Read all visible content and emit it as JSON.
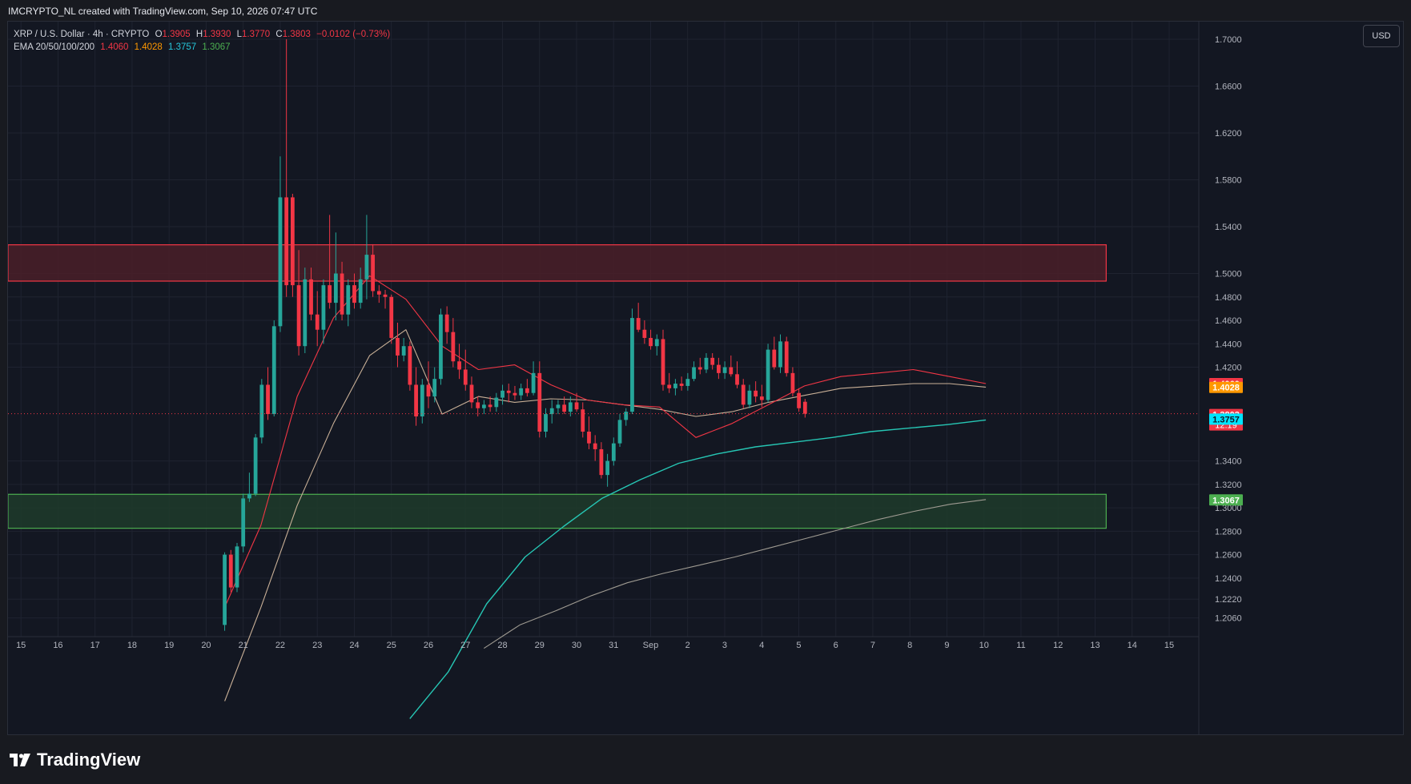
{
  "header": {
    "credit": "IMCRYPTO_NL created with TradingView.com, Sep 10, 2026 07:47 UTC"
  },
  "legend": {
    "symbol": "XRP / U.S. Dollar · 4h · CRYPTO",
    "o_label": "O",
    "o_value": "1.3905",
    "h_label": "H",
    "h_value": "1.3930",
    "l_label": "L",
    "l_value": "1.3770",
    "c_label": "C",
    "c_value": "1.3803",
    "change": "−0.0102 (−0.73%)",
    "ema_label": "EMA 20/50/100/200",
    "ema20": "1.4060",
    "ema50": "1.4028",
    "ema100": "1.3757",
    "ema200": "1.3067"
  },
  "toolbar": {
    "currency": "USD"
  },
  "brand": {
    "name": "TradingView"
  },
  "colors": {
    "bull": "#26a69a",
    "bear": "#f23645",
    "ema20": "#f23645",
    "ema50": "#c9b097",
    "ema100": "#26c6b4",
    "ema200": "#9e9a91",
    "resistance_fill": "#4a1f28",
    "resistance_border": "#f23645",
    "support_fill": "#1e3b2a",
    "support_border": "#4caf50"
  },
  "chart_data": {
    "type": "candlestick",
    "timeframe": "4h",
    "symbol": "XRP / U.S. Dollar",
    "currency": "USD",
    "ylim": [
      1.19,
      1.715
    ],
    "xlim": [
      -0.35,
      31.8
    ],
    "y_ticks": [
      "1.2060",
      "1.2220",
      "1.2400",
      "1.2600",
      "1.2800",
      "1.3000",
      "1.3200",
      "1.3400",
      "1.4200",
      "1.4400",
      "1.4600",
      "1.4800",
      "1.5000",
      "1.5400",
      "1.5800",
      "1.6200",
      "1.6600",
      "1.7000"
    ],
    "x_ticks": [
      {
        "pos": 0,
        "label": "15"
      },
      {
        "pos": 1,
        "label": "16"
      },
      {
        "pos": 2,
        "label": "17"
      },
      {
        "pos": 3,
        "label": "18"
      },
      {
        "pos": 4,
        "label": "19"
      },
      {
        "pos": 5,
        "label": "20"
      },
      {
        "pos": 6,
        "label": "21"
      },
      {
        "pos": 7,
        "label": "22"
      },
      {
        "pos": 8,
        "label": "23"
      },
      {
        "pos": 9,
        "label": "24"
      },
      {
        "pos": 10,
        "label": "25"
      },
      {
        "pos": 11,
        "label": "26"
      },
      {
        "pos": 12,
        "label": "27"
      },
      {
        "pos": 13,
        "label": "28"
      },
      {
        "pos": 14,
        "label": "29"
      },
      {
        "pos": 15,
        "label": "30"
      },
      {
        "pos": 16,
        "label": "31"
      },
      {
        "pos": 17,
        "label": "Sep"
      },
      {
        "pos": 18,
        "label": "2"
      },
      {
        "pos": 19,
        "label": "3"
      },
      {
        "pos": 20,
        "label": "4"
      },
      {
        "pos": 21,
        "label": "5"
      },
      {
        "pos": 22,
        "label": "6"
      },
      {
        "pos": 23,
        "label": "7"
      },
      {
        "pos": 24,
        "label": "8"
      },
      {
        "pos": 25,
        "label": "9"
      },
      {
        "pos": 26,
        "label": "10"
      },
      {
        "pos": 27,
        "label": "11"
      },
      {
        "pos": 28,
        "label": "12"
      },
      {
        "pos": 29,
        "label": "13"
      },
      {
        "pos": 30,
        "label": "14"
      },
      {
        "pos": 31,
        "label": "15"
      }
    ],
    "candles": {
      "start": 5.5,
      "step": 0.1667,
      "ohlc": [
        [
          1.2,
          1.262,
          1.195,
          1.26
        ],
        [
          1.26,
          1.264,
          1.228,
          1.232
        ],
        [
          1.232,
          1.27,
          1.228,
          1.267
        ],
        [
          1.267,
          1.312,
          1.262,
          1.308
        ],
        [
          1.308,
          1.33,
          1.305,
          1.312
        ],
        [
          1.312,
          1.363,
          1.31,
          1.36
        ],
        [
          1.36,
          1.41,
          1.355,
          1.405
        ],
        [
          1.405,
          1.42,
          1.375,
          1.38
        ],
        [
          1.38,
          1.46,
          1.378,
          1.455
        ],
        [
          1.455,
          1.6,
          1.45,
          1.565
        ],
        [
          1.565,
          1.7,
          1.48,
          1.49
        ],
        [
          1.565,
          1.568,
          1.48,
          1.49
        ],
        [
          1.49,
          1.52,
          1.43,
          1.438
        ],
        [
          1.438,
          1.505,
          1.432,
          1.495
        ],
        [
          1.495,
          1.505,
          1.46,
          1.465
        ],
        [
          1.465,
          1.485,
          1.438,
          1.452
        ],
        [
          1.452,
          1.495,
          1.44,
          1.49
        ],
        [
          1.49,
          1.55,
          1.47,
          1.475
        ],
        [
          1.475,
          1.535,
          1.46,
          1.5
        ],
        [
          1.5,
          1.51,
          1.46,
          1.465
        ],
        [
          1.465,
          1.495,
          1.455,
          1.49
        ],
        [
          1.49,
          1.5,
          1.47,
          1.475
        ],
        [
          1.475,
          1.505,
          1.47,
          1.495
        ],
        [
          1.495,
          1.55,
          1.478,
          1.516
        ],
        [
          1.516,
          1.525,
          1.48,
          1.485
        ],
        [
          1.485,
          1.49,
          1.475,
          1.482
        ],
        [
          1.482,
          1.486,
          1.47,
          1.48
        ],
        [
          1.48,
          1.482,
          1.44,
          1.445
        ],
        [
          1.445,
          1.458,
          1.42,
          1.43
        ],
        [
          1.43,
          1.445,
          1.425,
          1.438
        ],
        [
          1.438,
          1.442,
          1.4,
          1.405
        ],
        [
          1.405,
          1.42,
          1.37,
          1.378
        ],
        [
          1.378,
          1.41,
          1.372,
          1.405
        ],
        [
          1.405,
          1.425,
          1.385,
          1.395
        ],
        [
          1.395,
          1.42,
          1.39,
          1.41
        ],
        [
          1.41,
          1.47,
          1.405,
          1.465
        ],
        [
          1.465,
          1.472,
          1.44,
          1.45
        ],
        [
          1.45,
          1.462,
          1.42,
          1.425
        ],
        [
          1.425,
          1.44,
          1.41,
          1.418
        ],
        [
          1.418,
          1.435,
          1.4,
          1.405
        ],
        [
          1.405,
          1.412,
          1.385,
          1.39
        ],
        [
          1.39,
          1.395,
          1.378,
          1.385
        ],
        [
          1.385,
          1.392,
          1.38,
          1.388
        ],
        [
          1.388,
          1.395,
          1.382,
          1.386
        ],
        [
          1.386,
          1.398,
          1.382,
          1.394
        ],
        [
          1.394,
          1.405,
          1.388,
          1.4
        ],
        [
          1.4,
          1.406,
          1.39,
          1.398
        ],
        [
          1.398,
          1.404,
          1.392,
          1.396
        ],
        [
          1.396,
          1.406,
          1.392,
          1.402
        ],
        [
          1.402,
          1.41,
          1.395,
          1.398
        ],
        [
          1.398,
          1.425,
          1.396,
          1.415
        ],
        [
          1.415,
          1.425,
          1.36,
          1.365
        ],
        [
          1.365,
          1.385,
          1.36,
          1.38
        ],
        [
          1.38,
          1.392,
          1.372,
          1.385
        ],
        [
          1.385,
          1.392,
          1.38,
          1.388
        ],
        [
          1.388,
          1.395,
          1.38,
          1.382
        ],
        [
          1.382,
          1.395,
          1.378,
          1.39
        ],
        [
          1.39,
          1.398,
          1.382,
          1.384
        ],
        [
          1.384,
          1.39,
          1.36,
          1.365
        ],
        [
          1.365,
          1.378,
          1.35,
          1.355
        ],
        [
          1.355,
          1.362,
          1.34,
          1.35
        ],
        [
          1.35,
          1.356,
          1.325,
          1.328
        ],
        [
          1.328,
          1.346,
          1.318,
          1.34
        ],
        [
          1.34,
          1.36,
          1.336,
          1.355
        ],
        [
          1.355,
          1.38,
          1.352,
          1.375
        ],
        [
          1.375,
          1.385,
          1.37,
          1.382
        ],
        [
          1.382,
          1.47,
          1.38,
          1.462
        ],
        [
          1.462,
          1.475,
          1.45,
          1.452
        ],
        [
          1.452,
          1.46,
          1.44,
          1.445
        ],
        [
          1.445,
          1.452,
          1.435,
          1.438
        ],
        [
          1.438,
          1.448,
          1.43,
          1.444
        ],
        [
          1.444,
          1.452,
          1.4,
          1.405
        ],
        [
          1.405,
          1.415,
          1.398,
          1.402
        ],
        [
          1.402,
          1.41,
          1.396,
          1.406
        ],
        [
          1.406,
          1.412,
          1.4,
          1.404
        ],
        [
          1.404,
          1.415,
          1.4,
          1.41
        ],
        [
          1.41,
          1.425,
          1.408,
          1.42
        ],
        [
          1.42,
          1.428,
          1.414,
          1.418
        ],
        [
          1.418,
          1.432,
          1.415,
          1.428
        ],
        [
          1.428,
          1.432,
          1.418,
          1.422
        ],
        [
          1.422,
          1.428,
          1.41,
          1.415
        ],
        [
          1.415,
          1.425,
          1.41,
          1.42
        ],
        [
          1.42,
          1.43,
          1.412,
          1.414
        ],
        [
          1.414,
          1.425,
          1.402,
          1.405
        ],
        [
          1.405,
          1.41,
          1.385,
          1.388
        ],
        [
          1.388,
          1.405,
          1.385,
          1.4
        ],
        [
          1.4,
          1.408,
          1.39,
          1.395
        ],
        [
          1.395,
          1.405,
          1.386,
          1.392
        ],
        [
          1.392,
          1.44,
          1.39,
          1.435
        ],
        [
          1.435,
          1.446,
          1.418,
          1.42
        ],
        [
          1.42,
          1.448,
          1.415,
          1.442
        ],
        [
          1.442,
          1.446,
          1.412,
          1.415
        ],
        [
          1.415,
          1.42,
          1.395,
          1.398
        ],
        [
          1.398,
          1.402,
          1.382,
          1.385
        ],
        [
          1.3905,
          1.393,
          1.377,
          1.3803
        ]
      ]
    },
    "ema": {
      "x_start": 5.5,
      "x_end": 26.05,
      "ema20": [
        1.215,
        1.285,
        1.395,
        1.462,
        1.498,
        1.478,
        1.438,
        1.418,
        1.422,
        1.405,
        1.392,
        1.388,
        1.386,
        1.36,
        1.372,
        1.388,
        1.404,
        1.412,
        1.415,
        1.418,
        1.412,
        1.406
      ],
      "ema50": [
        1.135,
        1.215,
        1.302,
        1.372,
        1.43,
        1.452,
        1.38,
        1.395,
        1.39,
        1.393,
        1.392,
        1.388,
        1.384,
        1.378,
        1.382,
        1.39,
        1.396,
        1.402,
        1.404,
        1.406,
        1.406,
        1.403
      ],
      "ema100": [
        1.12,
        1.16,
        1.218,
        1.258,
        1.284,
        1.308,
        1.324,
        1.338,
        1.346,
        1.352,
        1.356,
        1.36,
        1.365,
        1.368,
        1.371,
        1.375
      ],
      "ema100_x_start": 10.5,
      "ema200": [
        1.18,
        1.2,
        1.212,
        1.225,
        1.236,
        1.244,
        1.251,
        1.258,
        1.266,
        1.274,
        1.282,
        1.29,
        1.297,
        1.303,
        1.307
      ],
      "ema200_x_start": 12.5
    },
    "zones": [
      {
        "name": "resistance",
        "y_low": 1.4935,
        "y_high": 1.5245,
        "x_from": -0.35,
        "x_to": 29.3
      },
      {
        "name": "support",
        "y_low": 1.2825,
        "y_high": 1.3115,
        "x_from": -0.35,
        "x_to": 29.3
      }
    ],
    "price_labels": [
      {
        "name": "ema20",
        "value": "1.4060",
        "text": "1.4060",
        "color": "#f23645"
      },
      {
        "name": "ema50",
        "value": "1.4028",
        "text": "1.4028",
        "color": "#ff9800"
      },
      {
        "name": "last",
        "value": "1.3803",
        "text": "1.3803",
        "sub": "12:19",
        "color": "#f23645"
      },
      {
        "name": "ema100",
        "value": "1.3757",
        "text": "1.3757",
        "color": "#00e5ff"
      },
      {
        "name": "ema200",
        "value": "1.3067",
        "text": "1.3067",
        "color": "#4caf50"
      }
    ],
    "last_price": 1.3803
  }
}
